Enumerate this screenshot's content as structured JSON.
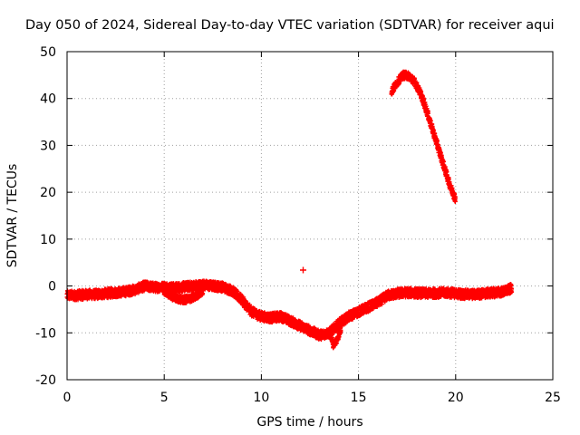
{
  "chart_data": {
    "type": "scatter",
    "title": "Day 050 of 2024, Sidereal Day-to-day VTEC variation (SDTVAR) for receiver aqui",
    "xlabel": "GPS time / hours",
    "ylabel": "SDTVAR / TECUs",
    "xlim": [
      0,
      25
    ],
    "ylim": [
      -20,
      50
    ],
    "x_ticks": [
      0,
      5,
      10,
      15,
      20,
      25
    ],
    "y_ticks": [
      -20,
      -10,
      0,
      10,
      20,
      30,
      40,
      50
    ],
    "x_tick_labels": [
      "0",
      "5",
      "10",
      "15",
      "20",
      "25"
    ],
    "y_tick_labels": [
      "-20",
      "-10",
      "0",
      "10",
      "20",
      "30",
      "40",
      "50"
    ],
    "grid": true,
    "marker": "+",
    "series": [
      {
        "name": "main-band",
        "color": "#ff0000",
        "band_halfwidth": 1.0,
        "x": [
          0.0,
          0.5,
          1.0,
          1.5,
          2.0,
          2.5,
          3.0,
          3.5,
          4.0,
          4.5,
          5.0,
          5.5,
          6.0,
          6.5,
          7.0,
          7.5,
          8.0,
          8.5,
          9.0,
          9.5,
          10.0,
          10.5,
          11.0,
          11.5,
          12.0,
          12.5,
          13.0,
          13.5,
          14.0,
          14.5,
          15.0,
          15.5,
          16.0,
          16.5,
          17.0,
          17.5,
          18.0,
          18.5,
          19.0,
          19.5,
          20.0,
          20.5,
          21.0,
          21.5,
          22.0,
          22.5,
          22.9
        ],
        "y": [
          -2.0,
          -2.0,
          -1.8,
          -1.8,
          -1.6,
          -1.4,
          -1.2,
          -0.8,
          0.0,
          -0.3,
          -0.2,
          -0.4,
          -0.2,
          0.0,
          0.2,
          0.0,
          -0.2,
          -1.0,
          -3.0,
          -5.5,
          -6.5,
          -6.8,
          -6.5,
          -7.5,
          -8.5,
          -9.5,
          -10.5,
          -10.0,
          -8.0,
          -6.5,
          -5.5,
          -4.5,
          -3.5,
          -2.0,
          -1.6,
          -1.4,
          -1.5,
          -1.6,
          -1.5,
          -1.4,
          -1.6,
          -1.8,
          -1.8,
          -1.6,
          -1.4,
          -1.2,
          -0.5
        ]
      },
      {
        "name": "side-branch",
        "color": "#ff0000",
        "band_halfwidth": 0.8,
        "x": [
          5.0,
          5.5,
          6.0,
          6.5,
          7.0
        ],
        "y": [
          -1.0,
          -2.5,
          -3.0,
          -2.5,
          -1.0
        ]
      },
      {
        "name": "dip-spike",
        "color": "#ff0000",
        "band_halfwidth": 0.7,
        "x": [
          13.5,
          13.7,
          13.9,
          14.1
        ],
        "y": [
          -9.5,
          -12.5,
          -11.5,
          -9.0
        ]
      },
      {
        "name": "arc",
        "color": "#ff0000",
        "band_halfwidth": 0.8,
        "x": [
          16.7,
          17.0,
          17.3,
          17.6,
          17.9,
          18.2,
          18.5,
          18.8,
          19.1,
          19.4,
          19.7,
          20.0
        ],
        "y": [
          41.5,
          43.5,
          45.0,
          44.8,
          43.5,
          41.0,
          37.5,
          33.5,
          29.5,
          25.5,
          21.5,
          18.5
        ]
      },
      {
        "name": "outlier",
        "color": "#ff0000",
        "band_halfwidth": 0.2,
        "x": [
          12.15
        ],
        "y": [
          3.4
        ]
      }
    ]
  }
}
